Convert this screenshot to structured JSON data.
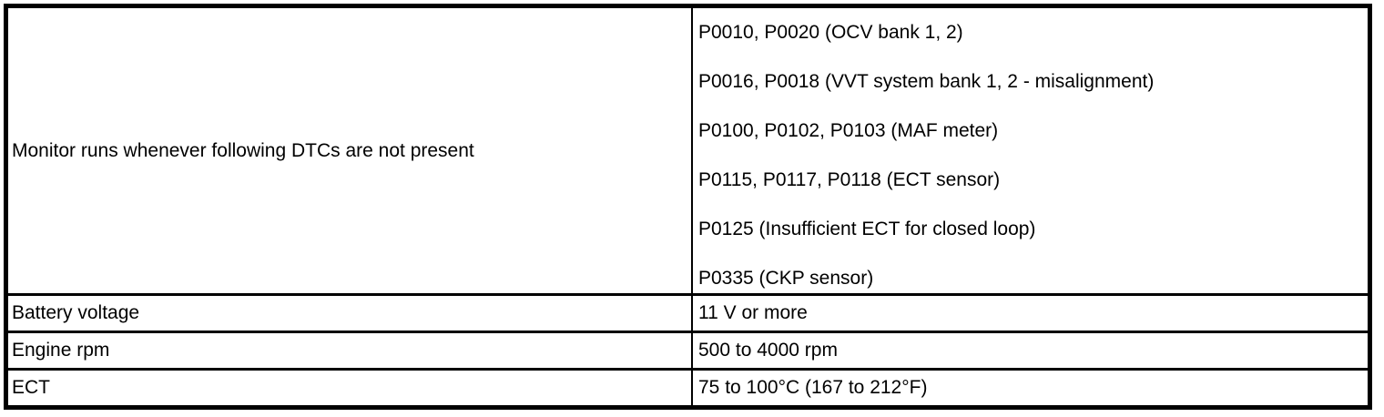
{
  "colors": {
    "border": "#000000",
    "background": "#ffffff",
    "text": "#000000"
  },
  "table": {
    "rows": [
      {
        "label": "Monitor runs whenever following DTCs are not present",
        "values": [
          "P0010, P0020 (OCV bank 1, 2)",
          "P0016, P0018 (VVT system bank 1, 2 - misalignment)",
          "P0100, P0102, P0103 (MAF meter)",
          "P0115, P0117, P0118 (ECT sensor)",
          "P0125 (Insufficient ECT for closed loop)",
          "P0335 (CKP sensor)"
        ]
      },
      {
        "label": "Battery voltage",
        "values": [
          "11 V or more"
        ]
      },
      {
        "label": "Engine rpm",
        "values": [
          "500 to 4000 rpm"
        ]
      },
      {
        "label": "ECT",
        "values": [
          "75 to 100°C (167 to 212°F)"
        ]
      }
    ]
  }
}
